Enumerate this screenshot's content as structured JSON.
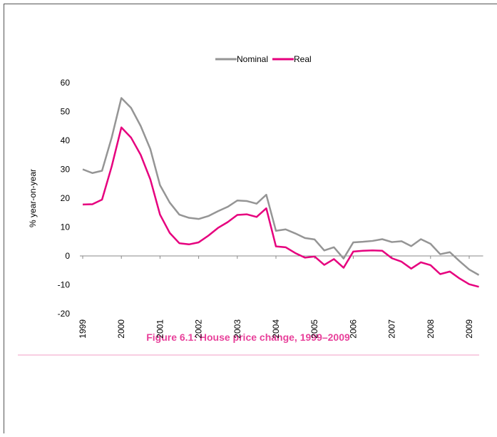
{
  "chart_data": {
    "type": "line",
    "title": "Figure 6.1: House price change, 1999–2009",
    "y_label": "% year-on-year",
    "categories": [
      "1999",
      null,
      null,
      null,
      "2000",
      null,
      null,
      null,
      "2001",
      null,
      null,
      null,
      "2002",
      null,
      null,
      null,
      "2003",
      null,
      null,
      null,
      "2004",
      null,
      null,
      null,
      "2005",
      null,
      null,
      null,
      "2006",
      null,
      null,
      null,
      "2007",
      null,
      null,
      null,
      "2008",
      null,
      null,
      null,
      "2009",
      null
    ],
    "series": [
      {
        "name": "Nominal",
        "color": "#959595",
        "values": [
          30,
          28.7,
          29.5,
          41,
          54.7,
          51.3,
          45,
          37,
          24.5,
          18.5,
          14.3,
          13.2,
          12.8,
          13.8,
          15.5,
          17,
          19.2,
          19,
          18.1,
          21.2,
          8.7,
          9.2,
          7.8,
          6.2,
          5.7,
          1.9,
          3,
          -0.9,
          4.7,
          4.9,
          5.2,
          5.8,
          4.8,
          5.1,
          3.4,
          5.8,
          4.2,
          0.6,
          1.3,
          -1.8,
          -4.7,
          -6.6
        ]
      },
      {
        "name": "Real",
        "color": "#e6007e",
        "values": [
          17.8,
          17.9,
          19.5,
          31,
          44.5,
          41,
          35,
          26.5,
          14.3,
          8,
          4.4,
          4,
          4.7,
          7,
          9.7,
          11.7,
          14.2,
          14.4,
          13.5,
          16.5,
          3.3,
          3,
          1,
          -0.6,
          -0.2,
          -3.1,
          -1.1,
          -4.1,
          1.5,
          1.8,
          1.9,
          1.8,
          -0.8,
          -2,
          -4.4,
          -2.2,
          -3.2,
          -6.3,
          -5.4,
          -7.8,
          -9.8,
          -10.7
        ]
      }
    ],
    "ylim": [
      -20,
      60
    ],
    "yticks": [
      -20,
      -10,
      0,
      10,
      20,
      30,
      40,
      50,
      60
    ],
    "legend": "top",
    "title_color": "#e8409a"
  }
}
